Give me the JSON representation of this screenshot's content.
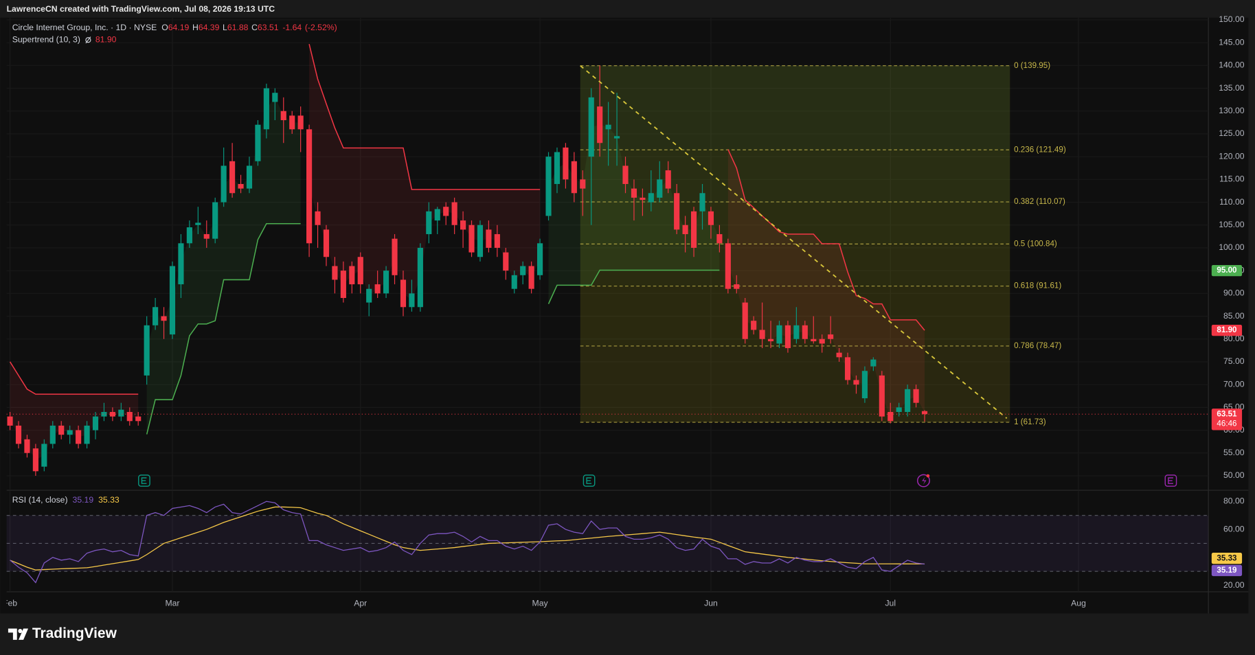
{
  "header": {
    "attribution": "LawrenceCN created with TradingView.com, Jul 08, 2026 19:13 UTC"
  },
  "footer": {
    "brand": "TradingView"
  },
  "chart_data": [
    {
      "type": "candlestick",
      "title": "Circle Internet Group, Inc. · 1D · NYSE",
      "ohlc_labels": [
        "O",
        "H",
        "L",
        "C"
      ],
      "change": -1.64,
      "change_pct": {
        "value": -2.52,
        "label": "(-2.52%)"
      },
      "up_color": "#089981",
      "down_color": "#f23645",
      "xlim": [
        -0.4,
        140.2
      ],
      "xticks": [
        {
          "value": 0,
          "label": "Feb"
        },
        {
          "value": 19,
          "label": "Mar"
        },
        {
          "value": 41,
          "label": "Apr"
        },
        {
          "value": 62,
          "label": "May"
        },
        {
          "value": 82,
          "label": "Jun"
        },
        {
          "value": 103,
          "label": "Jul"
        },
        {
          "value": 125,
          "label": "Aug"
        }
      ],
      "ylim": [
        47,
        150.5
      ],
      "yticks": [
        {
          "value": 50,
          "label": "50.00"
        },
        {
          "value": 55,
          "label": "55.00"
        },
        {
          "value": 60,
          "label": "60.00"
        },
        {
          "value": 65,
          "label": "65.00"
        },
        {
          "value": 70,
          "label": "70.00"
        },
        {
          "value": 75,
          "label": "75.00"
        },
        {
          "value": 80,
          "label": "80.00"
        },
        {
          "value": 85,
          "label": "85.00"
        },
        {
          "value": 90,
          "label": "90.00"
        },
        {
          "value": 95,
          "label": "95.00"
        },
        {
          "value": 100,
          "label": "100.00"
        },
        {
          "value": 105,
          "label": "105.00"
        },
        {
          "value": 110,
          "label": "110.00"
        },
        {
          "value": 115,
          "label": "115.00"
        },
        {
          "value": 120,
          "label": "120.00"
        },
        {
          "value": 125,
          "label": "125.00"
        },
        {
          "value": 130,
          "label": "130.00"
        },
        {
          "value": 135,
          "label": "135.00"
        },
        {
          "value": 140,
          "label": "140.00"
        },
        {
          "value": 145,
          "label": "145.00"
        },
        {
          "value": 150,
          "label": "150.00"
        }
      ],
      "ohlc": [
        [
          63,
          64,
          60,
          61
        ],
        [
          61,
          62,
          56,
          57
        ],
        [
          58,
          59,
          54,
          55
        ],
        [
          56,
          57,
          50,
          51
        ],
        [
          52,
          58,
          51,
          57
        ],
        [
          57,
          62,
          56,
          61
        ],
        [
          61,
          62,
          58,
          59
        ],
        [
          59,
          61,
          57,
          60
        ],
        [
          60,
          61,
          56,
          57
        ],
        [
          57,
          62,
          56,
          61
        ],
        [
          60,
          64,
          58,
          63
        ],
        [
          63,
          66,
          62,
          64
        ],
        [
          64,
          65,
          62,
          63
        ],
        [
          63,
          66,
          62,
          64.5
        ],
        [
          64,
          65,
          61,
          62
        ],
        [
          63,
          64,
          61,
          62
        ],
        [
          72,
          85,
          70,
          83
        ],
        [
          83,
          89,
          82,
          87
        ],
        [
          85,
          87,
          80,
          84
        ],
        [
          81,
          97,
          80,
          96
        ],
        [
          92,
          103,
          89,
          101
        ],
        [
          101,
          106,
          100,
          104.5
        ],
        [
          105,
          109,
          103,
          105.5
        ],
        [
          103,
          106,
          100,
          102
        ],
        [
          102,
          111,
          101,
          110
        ],
        [
          110,
          122,
          109,
          118
        ],
        [
          119,
          123,
          111,
          112
        ],
        [
          114,
          116,
          112,
          113
        ],
        [
          113,
          120,
          112,
          118
        ],
        [
          119,
          128,
          118,
          127
        ],
        [
          126,
          136,
          124,
          135
        ],
        [
          132,
          135,
          128,
          134
        ],
        [
          130,
          133,
          123,
          128
        ],
        [
          129,
          130,
          125,
          126
        ],
        [
          129,
          131,
          121,
          126
        ],
        [
          126,
          127,
          98,
          101
        ],
        [
          108,
          110,
          100,
          105
        ],
        [
          104,
          105,
          96,
          98
        ],
        [
          96,
          98,
          90,
          93
        ],
        [
          95,
          97,
          88,
          89
        ],
        [
          96,
          97,
          90,
          92
        ],
        [
          98,
          99,
          90,
          92
        ],
        [
          88,
          92,
          85,
          91
        ],
        [
          92,
          95,
          89,
          90
        ],
        [
          90,
          96,
          89,
          95
        ],
        [
          102,
          103,
          92,
          94
        ],
        [
          93,
          95,
          85,
          87
        ],
        [
          87,
          93,
          86,
          90
        ],
        [
          87,
          101,
          86,
          100
        ],
        [
          103,
          110,
          101,
          108
        ],
        [
          106,
          109,
          103,
          108.5
        ],
        [
          109,
          110,
          105,
          107
        ],
        [
          110,
          111,
          103,
          105
        ],
        [
          106,
          108,
          100,
          104
        ],
        [
          105,
          106,
          98,
          99
        ],
        [
          98,
          106,
          97,
          105
        ],
        [
          104,
          106,
          99,
          100
        ],
        [
          103,
          105,
          98,
          100
        ],
        [
          99,
          100,
          93,
          95
        ],
        [
          91,
          95,
          90,
          94
        ],
        [
          94,
          97,
          92,
          96
        ],
        [
          96,
          97,
          90,
          91
        ],
        [
          94,
          102,
          93,
          101
        ],
        [
          107,
          121,
          106,
          120
        ],
        [
          114,
          122,
          112,
          121
        ],
        [
          122,
          123,
          113,
          115
        ],
        [
          119,
          121,
          110,
          112
        ],
        [
          115,
          117,
          107,
          113
        ],
        [
          120,
          135,
          105,
          133
        ],
        [
          131,
          140,
          120,
          123
        ],
        [
          126,
          132,
          118,
          127
        ],
        [
          124,
          134,
          118,
          124.5
        ],
        [
          118,
          120,
          112,
          114
        ],
        [
          113,
          115,
          106,
          111
        ],
        [
          111,
          113,
          107,
          110.5
        ],
        [
          110,
          117,
          108,
          112
        ],
        [
          111,
          119,
          110,
          115
        ],
        [
          117,
          119,
          112,
          113
        ],
        [
          112,
          114,
          103,
          104
        ],
        [
          105,
          107,
          99,
          103
        ],
        [
          108,
          109,
          98,
          100
        ],
        [
          108,
          114,
          104,
          112
        ],
        [
          108,
          109,
          102,
          105
        ],
        [
          103,
          105,
          99,
          101
        ],
        [
          101,
          102,
          90,
          91
        ],
        [
          92,
          94,
          90,
          91
        ],
        [
          88,
          89,
          79,
          80
        ],
        [
          84,
          85,
          81,
          82
        ],
        [
          82,
          88,
          78,
          80
        ],
        [
          80,
          84,
          78,
          79.5
        ],
        [
          79,
          84,
          78,
          83
        ],
        [
          83,
          84,
          77,
          78
        ],
        [
          80,
          87,
          79,
          83
        ],
        [
          83,
          84,
          79,
          80
        ],
        [
          80,
          85,
          79,
          79.5
        ],
        [
          80,
          81,
          77,
          79
        ],
        [
          81,
          85,
          79,
          80
        ],
        [
          77,
          78,
          75,
          76
        ],
        [
          76,
          77,
          70,
          71
        ],
        [
          71,
          72,
          68,
          70
        ],
        [
          67,
          74,
          66,
          73
        ],
        [
          74,
          76,
          73,
          75.5
        ],
        [
          72,
          73,
          62,
          63
        ],
        [
          64,
          66,
          61.5,
          62
        ],
        [
          64,
          66,
          63,
          65
        ],
        [
          64,
          70,
          63,
          69
        ],
        [
          69,
          70,
          65,
          66
        ],
        [
          64.19,
          64.39,
          61.88,
          63.51
        ]
      ],
      "supertrend": {
        "label": "Supertrend (10, 3)",
        "last": {
          "value": 81.9,
          "label": "81.90"
        },
        "up_color": "#4caf50",
        "down_color": "#f23645",
        "up_values": [
          null,
          null,
          null,
          null,
          null,
          null,
          null,
          null,
          null,
          null,
          null,
          null,
          null,
          null,
          null,
          null,
          59.1,
          66.7,
          66.7,
          66.7,
          72,
          80.7,
          83.3,
          83.3,
          84,
          93,
          93,
          93,
          93,
          101.8,
          105.3,
          105.3,
          105.3,
          105.3,
          105.3,
          null,
          null,
          null,
          null,
          null,
          null,
          null,
          null,
          null,
          null,
          null,
          null,
          null,
          null,
          null,
          null,
          null,
          null,
          null,
          null,
          null,
          null,
          null,
          null,
          null,
          null,
          null,
          null,
          87.7,
          91.8,
          91.8,
          91.8,
          91.8,
          91.8,
          95.1,
          95.1,
          95.1,
          95.1,
          95.1,
          95.1,
          95.1,
          95.1,
          95.1,
          95.1,
          95.1,
          95.1,
          95.1,
          95.1,
          95.1,
          null,
          null,
          null,
          null,
          null,
          null,
          null,
          null,
          null,
          null,
          null,
          null,
          null,
          null,
          null,
          null,
          null,
          null,
          null,
          null,
          null,
          null,
          null,
          null
        ],
        "down_values": [
          75,
          72,
          69,
          67.9,
          67.9,
          67.9,
          67.9,
          67.9,
          67.9,
          67.9,
          67.9,
          67.9,
          67.9,
          67.9,
          67.9,
          67.9,
          null,
          null,
          null,
          null,
          null,
          null,
          null,
          null,
          null,
          null,
          null,
          null,
          null,
          null,
          null,
          null,
          null,
          null,
          null,
          144.7,
          137,
          131.6,
          126.3,
          121.9,
          121.9,
          121.9,
          121.9,
          121.9,
          121.9,
          121.9,
          121.9,
          112.8,
          112.8,
          112.8,
          112.8,
          112.8,
          112.8,
          112.8,
          112.8,
          112.8,
          112.8,
          112.8,
          112.8,
          112.8,
          112.8,
          112.8,
          112.8,
          null,
          null,
          null,
          null,
          null,
          null,
          null,
          null,
          null,
          null,
          null,
          null,
          null,
          null,
          null,
          null,
          null,
          null,
          null,
          null,
          null,
          121.6,
          117.5,
          110.5,
          108.8,
          107,
          105.3,
          103.5,
          103,
          103,
          103,
          103,
          100.9,
          100.9,
          100.9,
          94.7,
          89.5,
          88.9,
          87.7,
          87.7,
          84.2,
          84.2,
          84.2,
          84.2,
          81.9
        ]
      },
      "fib": {
        "color": "#c8b84a",
        "levels": [
          {
            "value": 139.95,
            "label": "0 (139.95)"
          },
          {
            "value": 121.49,
            "label": "0.236 (121.49)"
          },
          {
            "value": 110.07,
            "label": "0.382 (110.07)"
          },
          {
            "value": 100.84,
            "label": "0.5 (100.84)"
          },
          {
            "value": 91.61,
            "label": "0.618 (91.61)"
          },
          {
            "value": 78.47,
            "label": "0.786 (78.47)"
          },
          {
            "value": 61.73,
            "label": "1 (61.73)"
          }
        ]
      },
      "alert": {
        "value": 95,
        "label": "95.00",
        "color": "#4caf50"
      },
      "countdown": "46:46"
    },
    {
      "type": "line",
      "title": "RSI (14, close)",
      "ylim": [
        15.4,
        87.4
      ],
      "yticks": [
        {
          "value": 20,
          "label": "20.00"
        },
        {
          "value": 60,
          "label": "60.00"
        },
        {
          "value": 80,
          "label": "80.00"
        }
      ],
      "levels": [
        70,
        50,
        30
      ],
      "series": [
        {
          "color": "#7e57c2",
          "values": [
            38,
            33,
            29,
            22,
            36,
            40,
            38,
            39,
            37,
            43,
            45,
            46,
            44,
            45,
            42,
            41,
            70,
            72,
            70,
            75,
            76,
            77,
            75,
            72,
            76,
            78,
            72,
            71,
            74,
            77,
            80,
            79,
            74,
            72,
            71,
            52,
            52,
            49,
            47,
            45,
            46,
            47,
            44,
            45,
            47,
            51,
            45,
            42,
            50,
            56,
            57,
            57,
            58,
            55,
            51,
            55,
            52,
            52,
            48,
            46,
            48,
            45,
            51,
            63,
            64,
            60,
            58,
            57,
            66,
            60,
            61,
            61,
            55,
            53,
            53,
            54,
            56,
            53,
            47,
            45,
            46,
            53,
            48,
            46,
            39,
            39,
            35,
            37,
            36,
            36,
            39,
            36,
            40,
            38,
            37,
            37,
            39,
            36,
            33,
            32,
            37,
            40,
            31,
            30,
            34,
            38,
            36,
            35.19
          ]
        },
        {
          "color": "#f7c948",
          "values": [
            38,
            35.5,
            33,
            31,
            31.3,
            31.6,
            31.9,
            32.1,
            32.3,
            32.6,
            33.5,
            34.5,
            35.5,
            36.5,
            37.5,
            38.5,
            42,
            46,
            50,
            52,
            54,
            56,
            58,
            60,
            62.5,
            65,
            67,
            69,
            71,
            73,
            74.5,
            76,
            76,
            75.8,
            75.5,
            73.5,
            71.5,
            70,
            67,
            64,
            61.5,
            59,
            56.5,
            54,
            51.5,
            49,
            47,
            46,
            45,
            45.5,
            46,
            46.5,
            47,
            47.8,
            48.5,
            49.3,
            50,
            50.2,
            50.4,
            50.6,
            50.8,
            51,
            51.2,
            51.5,
            51.8,
            52,
            52.6,
            53.2,
            53.8,
            54.4,
            55,
            55.5,
            56,
            56.5,
            57,
            57.5,
            58,
            57.2,
            56.3,
            55.4,
            54.5,
            53.8,
            53,
            50.8,
            48.5,
            46.3,
            44,
            43.2,
            42.4,
            41.6,
            40.8,
            40,
            39.4,
            38.8,
            38.2,
            37.6,
            37.1,
            36.6,
            36.2,
            35.8,
            35.4,
            35.4,
            35.4,
            35.4,
            35.35,
            35.35,
            35.34,
            35.33
          ]
        }
      ]
    }
  ]
}
